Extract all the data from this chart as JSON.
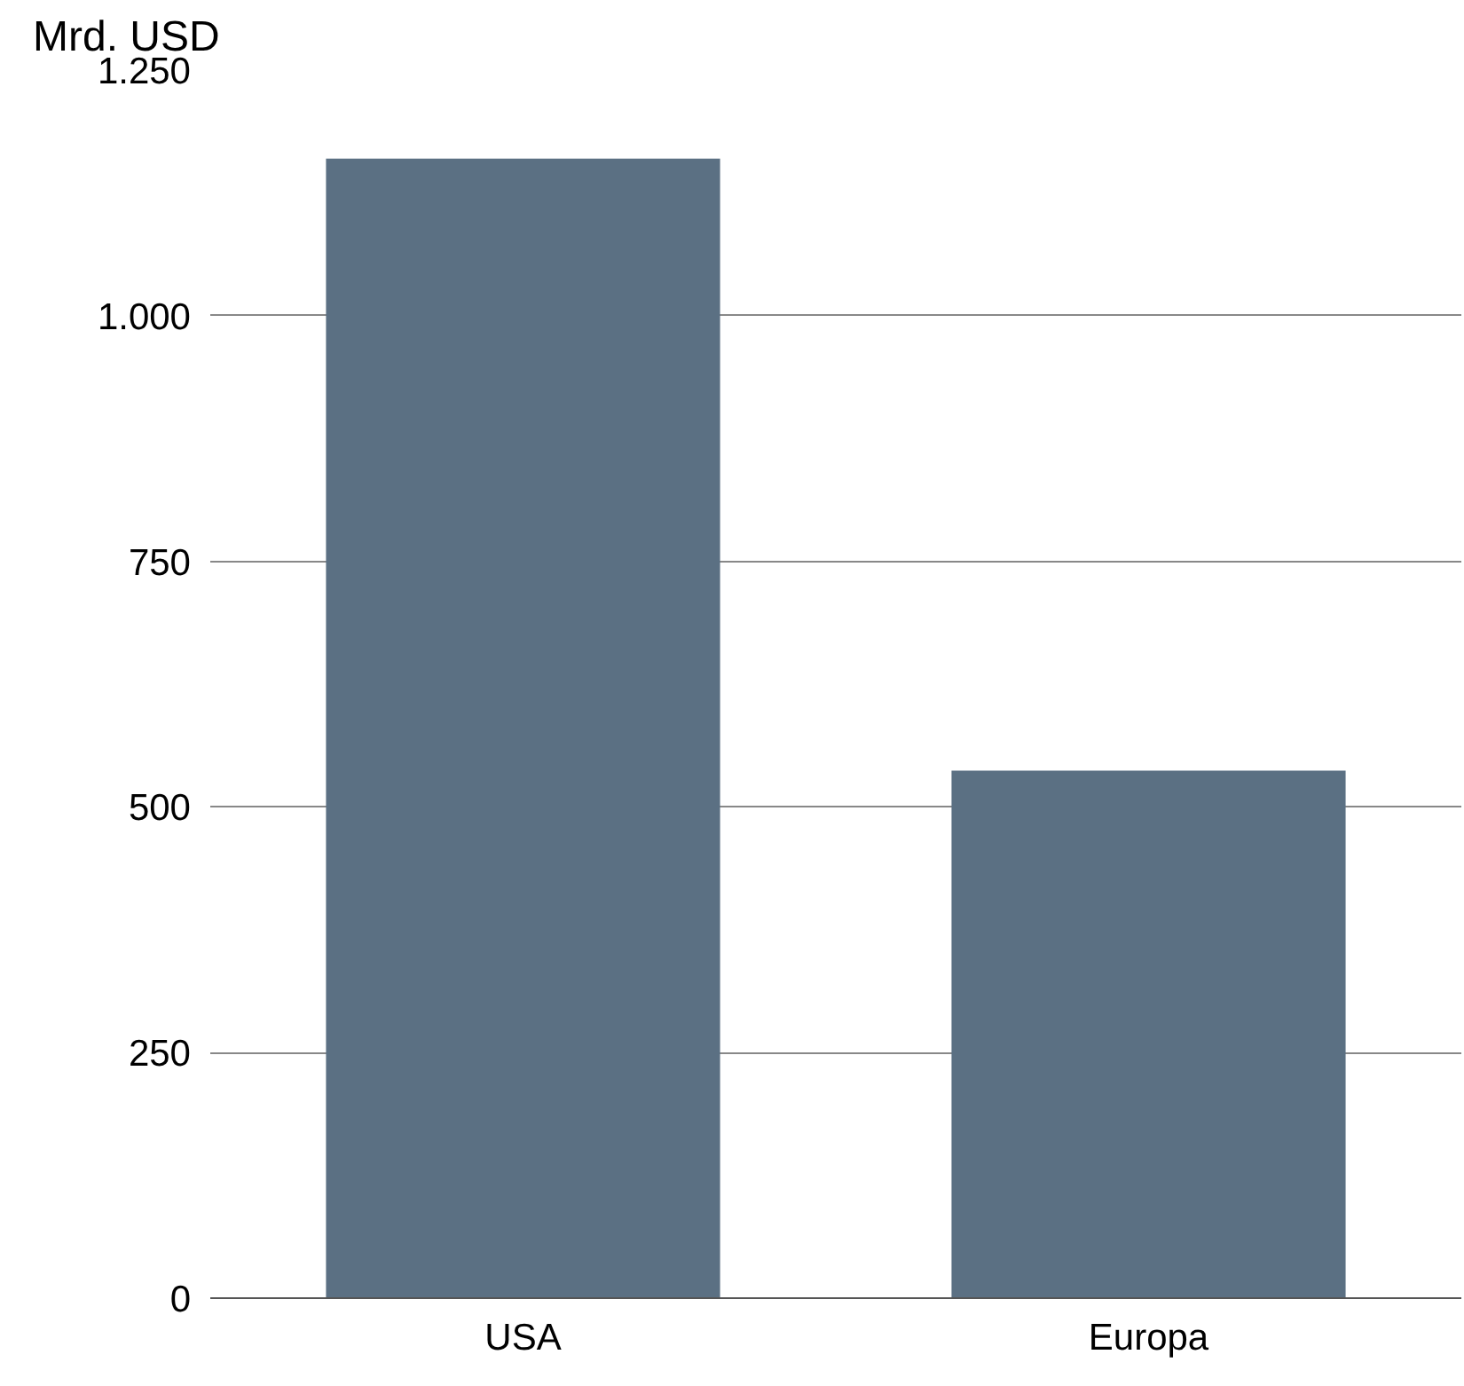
{
  "chart_data": {
    "type": "bar",
    "ylabel": "Mrd. USD",
    "categories": [
      "USA",
      "Europa"
    ],
    "values": [
      1160,
      537
    ],
    "color": "#5b7083",
    "ylim": [
      0,
      1250
    ],
    "yticks": [
      0,
      250,
      500,
      750,
      {
        "value": 1000,
        "label": "1.000"
      },
      {
        "value": 1250,
        "label": "1.250"
      }
    ],
    "grid": "y"
  }
}
